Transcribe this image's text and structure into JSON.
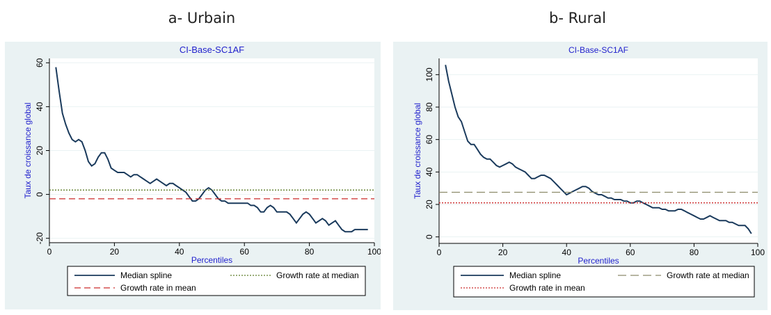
{
  "headings": {
    "a": "a- Urbain",
    "b": "b- Rural"
  },
  "colors": {
    "background": "#eaf2f3",
    "plot_area": "#ffffff",
    "title_text": "#1f1fcc",
    "axis_label_text": "#1f1fcc",
    "spline": "#1a3a5c"
  },
  "chart_data": [
    {
      "type": "line",
      "title": "CI-Base-SC1AF",
      "xlabel": "Percentiles",
      "ylabel": "Taux de croissance global",
      "xlim": [
        0,
        100
      ],
      "ylim": [
        -22,
        62
      ],
      "xticks": [
        0,
        20,
        40,
        60,
        80,
        100
      ],
      "yticks": [
        -20,
        0,
        20,
        40,
        60
      ],
      "grid": true,
      "legend": "bottom",
      "series": [
        {
          "name": "Median spline",
          "style": "solid",
          "color": "#1a3a5c",
          "x": [
            2,
            3,
            4,
            5,
            6,
            7,
            8,
            9,
            10,
            11,
            12,
            13,
            14,
            15,
            16,
            17,
            18,
            19,
            20,
            21,
            22,
            23,
            24,
            25,
            26,
            27,
            28,
            29,
            30,
            31,
            32,
            33,
            34,
            35,
            36,
            37,
            38,
            39,
            40,
            41,
            42,
            43,
            44,
            45,
            46,
            47,
            48,
            49,
            50,
            51,
            52,
            53,
            54,
            55,
            56,
            57,
            58,
            59,
            60,
            61,
            62,
            63,
            64,
            65,
            66,
            67,
            68,
            69,
            70,
            71,
            72,
            73,
            74,
            75,
            76,
            77,
            78,
            79,
            80,
            81,
            82,
            83,
            84,
            85,
            86,
            87,
            88,
            89,
            90,
            91,
            92,
            93,
            94,
            95,
            96,
            97,
            98
          ],
          "values": [
            58,
            47,
            37,
            32,
            28,
            25,
            24,
            25,
            24,
            20,
            15,
            13,
            14,
            17,
            19,
            19,
            16,
            12,
            11,
            10,
            10,
            10,
            9,
            8,
            9,
            9,
            8,
            7,
            6,
            5,
            6,
            7,
            6,
            5,
            4,
            5,
            5,
            4,
            3,
            2,
            1,
            -1,
            -3,
            -3,
            -2,
            0,
            2,
            3,
            2,
            0,
            -2,
            -3,
            -3,
            -4,
            -4,
            -4,
            -4,
            -4,
            -4,
            -4,
            -5,
            -5,
            -6,
            -8,
            -8,
            -6,
            -5,
            -6,
            -8,
            -8,
            -8,
            -8,
            -9,
            -11,
            -13,
            -11,
            -9,
            -8,
            -9,
            -11,
            -13,
            -12,
            -11,
            -12,
            -14,
            -13,
            -12,
            -14,
            -16,
            -17,
            -17,
            -17,
            -16,
            -16,
            -16,
            -16,
            -16
          ],
          "range_note": "values follow the plotted median spline for percentiles 2–98"
        },
        {
          "name": "Growth rate at median",
          "style": "dotted",
          "color": "#5e7d2a",
          "x": [
            0,
            100
          ],
          "values": [
            2,
            2
          ]
        },
        {
          "name": "Growth rate in mean",
          "style": "dashed",
          "color": "#cc2a2a",
          "x": [
            0,
            100
          ],
          "values": [
            -2,
            -2
          ]
        }
      ]
    },
    {
      "type": "line",
      "title": "CI-Base-SC1AF",
      "xlabel": "Percentiles",
      "ylabel": "Taux de croissance global",
      "xlim": [
        0,
        100
      ],
      "ylim": [
        -4,
        110
      ],
      "xticks": [
        0,
        20,
        40,
        60,
        80,
        100
      ],
      "yticks": [
        0,
        20,
        40,
        60,
        80,
        100
      ],
      "grid": true,
      "legend": "bottom",
      "series": [
        {
          "name": "Median spline",
          "style": "solid",
          "color": "#1a3a5c",
          "x": [
            2,
            3,
            4,
            5,
            6,
            7,
            8,
            9,
            10,
            11,
            12,
            13,
            14,
            15,
            16,
            17,
            18,
            19,
            20,
            21,
            22,
            23,
            24,
            25,
            26,
            27,
            28,
            29,
            30,
            31,
            32,
            33,
            34,
            35,
            36,
            37,
            38,
            39,
            40,
            41,
            42,
            43,
            44,
            45,
            46,
            47,
            48,
            49,
            50,
            51,
            52,
            53,
            54,
            55,
            56,
            57,
            58,
            59,
            60,
            61,
            62,
            63,
            64,
            65,
            66,
            67,
            68,
            69,
            70,
            71,
            72,
            73,
            74,
            75,
            76,
            77,
            78,
            79,
            80,
            81,
            82,
            83,
            84,
            85,
            86,
            87,
            88,
            89,
            90,
            91,
            92,
            93,
            94,
            95,
            96,
            97,
            98
          ],
          "values": [
            106,
            96,
            88,
            80,
            74,
            71,
            65,
            59,
            57,
            57,
            54,
            51,
            49,
            48,
            48,
            46,
            44,
            43,
            44,
            45,
            46,
            45,
            43,
            42,
            41,
            40,
            38,
            36,
            36,
            37,
            38,
            38,
            37,
            36,
            34,
            32,
            30,
            28,
            26,
            27,
            28,
            29,
            30,
            31,
            31,
            30,
            28,
            27,
            26,
            26,
            25,
            24,
            24,
            23,
            23,
            23,
            22,
            22,
            21,
            21,
            22,
            22,
            21,
            20,
            19,
            18,
            18,
            18,
            17,
            17,
            16,
            16,
            16,
            17,
            17,
            16,
            15,
            14,
            13,
            12,
            11,
            11,
            12,
            13,
            12,
            11,
            10,
            10,
            10,
            9,
            9,
            8,
            7,
            7,
            7,
            5,
            2
          ],
          "range_note": "values follow the plotted median spline for percentiles 2–98"
        },
        {
          "name": "Growth rate at median",
          "style": "dashed-long",
          "color": "#8c8a6a",
          "x": [
            0,
            100
          ],
          "values": [
            27.5,
            27.5
          ]
        },
        {
          "name": "Growth rate in mean",
          "style": "dotted",
          "color": "#cc2a2a",
          "x": [
            0,
            100
          ],
          "values": [
            21,
            21
          ]
        }
      ]
    }
  ]
}
